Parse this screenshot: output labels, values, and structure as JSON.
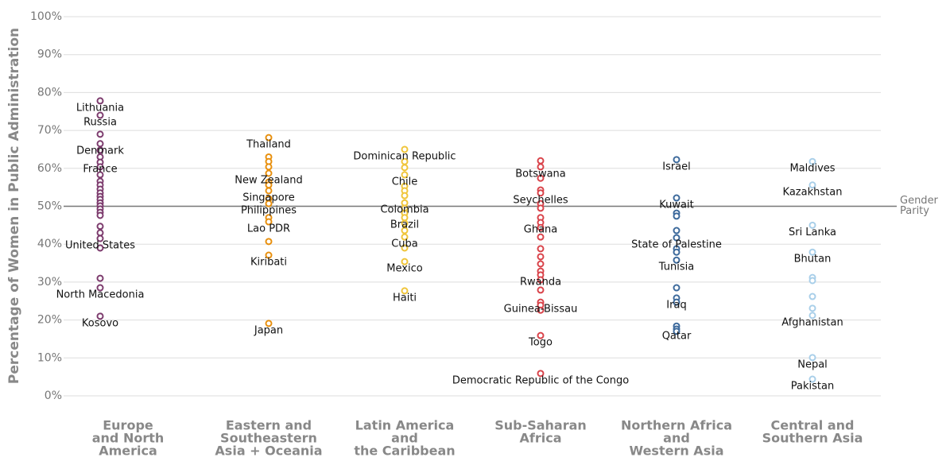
{
  "chart_data": {
    "type": "strip",
    "y_label": "Percentage of Women in Public Administration",
    "ylim": [
      0,
      100
    ],
    "yticks": [
      {
        "value": 0,
        "label": "0%"
      },
      {
        "value": 10,
        "label": "10%"
      },
      {
        "value": 20,
        "label": "20%"
      },
      {
        "value": 30,
        "label": "30%"
      },
      {
        "value": 40,
        "label": "40%"
      },
      {
        "value": 50,
        "label": "50%"
      },
      {
        "value": 60,
        "label": "60%"
      },
      {
        "value": 70,
        "label": "70%"
      },
      {
        "value": 80,
        "label": "80%"
      },
      {
        "value": 90,
        "label": "90%"
      },
      {
        "value": 100,
        "label": "100%"
      }
    ],
    "grid": true,
    "reference": {
      "value": 50,
      "label": [
        "Gender",
        "Parity"
      ]
    },
    "categories": [
      [
        "Europe",
        "and North",
        "America"
      ],
      [
        "Eastern and",
        "Southeastern",
        "Asia + Oceania"
      ],
      [
        "Latin America",
        "and",
        "the Caribbean"
      ],
      [
        "Sub-Saharan",
        "Africa"
      ],
      [
        "Northern Africa",
        "and",
        "Western Asia"
      ],
      [
        "Central and",
        "Southern Asia"
      ]
    ],
    "series": [
      {
        "color": "#7d3c6e",
        "values": [
          77.8,
          74,
          69,
          66.5,
          64.8,
          63,
          61.6,
          60.4,
          58.3,
          56.6,
          55.6,
          54.5,
          53.5,
          52.6,
          51.8,
          50.9,
          50.1,
          49.3,
          48.4,
          47.6,
          44.7,
          43,
          41.5,
          39,
          31,
          28.5,
          21
        ],
        "labels": [
          "Lithuania",
          "Russia",
          null,
          "Denmark",
          null,
          null,
          "France",
          null,
          null,
          null,
          null,
          null,
          null,
          null,
          null,
          null,
          null,
          null,
          null,
          null,
          null,
          null,
          "United States",
          null,
          null,
          "North Macedonia",
          "Kosovo"
        ]
      },
      {
        "color": "#e8900f",
        "values": [
          68.1,
          63,
          61.8,
          60.4,
          58.7,
          56.4,
          55.6,
          54.1,
          52,
          50.7,
          47,
          45.9,
          40.7,
          37.1,
          19.1
        ],
        "labels": [
          "Thailand",
          null,
          null,
          null,
          "New Zealand",
          null,
          null,
          "Singapore",
          null,
          "Philippines",
          null,
          "Lao PDR",
          null,
          "Kiribati",
          "Japan"
        ]
      },
      {
        "color": "#f0c53a",
        "values": [
          65,
          61.8,
          60.2,
          58.3,
          55.3,
          54.1,
          52.8,
          50.9,
          49.5,
          48.2,
          47,
          45.5,
          43.6,
          41.9,
          39,
          35.4,
          27.7
        ],
        "labels": [
          "Dominican Republic",
          null,
          null,
          "Chile",
          null,
          null,
          null,
          "Colombia",
          null,
          null,
          "Brazil",
          null,
          null,
          "Cuba",
          null,
          "Mexico",
          "Haiti"
        ]
      },
      {
        "color": "#d9434a",
        "values": [
          62,
          60.4,
          57.4,
          54.3,
          53.5,
          50.7,
          49.5,
          47,
          45.7,
          44.4,
          41.9,
          38.8,
          36.7,
          34.8,
          32.9,
          31.9,
          30.6,
          27.9,
          24.7,
          23.9,
          22.6,
          15.9,
          5.9
        ],
        "labels": [
          null,
          "Botswana",
          null,
          null,
          "Seychelles",
          null,
          null,
          null,
          "Ghana",
          null,
          null,
          null,
          null,
          null,
          null,
          "Rwanda",
          null,
          null,
          "Guinea-Bissau",
          null,
          null,
          "Togo",
          "Democratic Republic of the Congo"
        ]
      },
      {
        "color": "#3d6a9c",
        "values": [
          62.3,
          52.2,
          48.2,
          47.4,
          43.6,
          41.7,
          38.8,
          37.9,
          35.8,
          28.5,
          25.8,
          24.7,
          18.4,
          17.6,
          17
        ],
        "labels": [
          "Israel",
          "Kuwait",
          null,
          null,
          null,
          "State of Palestine",
          null,
          null,
          "Tunisia",
          null,
          "Iraq",
          null,
          null,
          "Qatar",
          null
        ]
      },
      {
        "color": "#a9cfe9",
        "values": [
          61.8,
          55.6,
          45,
          37.9,
          31.2,
          30.4,
          26.2,
          23.1,
          21.2,
          10.1,
          4.4
        ],
        "labels": [
          "Maldives",
          "Kazakhstan",
          "Sri Lanka",
          "Bhutan",
          null,
          null,
          null,
          null,
          "Afghanistan",
          "Nepal",
          "Pakistan"
        ]
      }
    ]
  }
}
